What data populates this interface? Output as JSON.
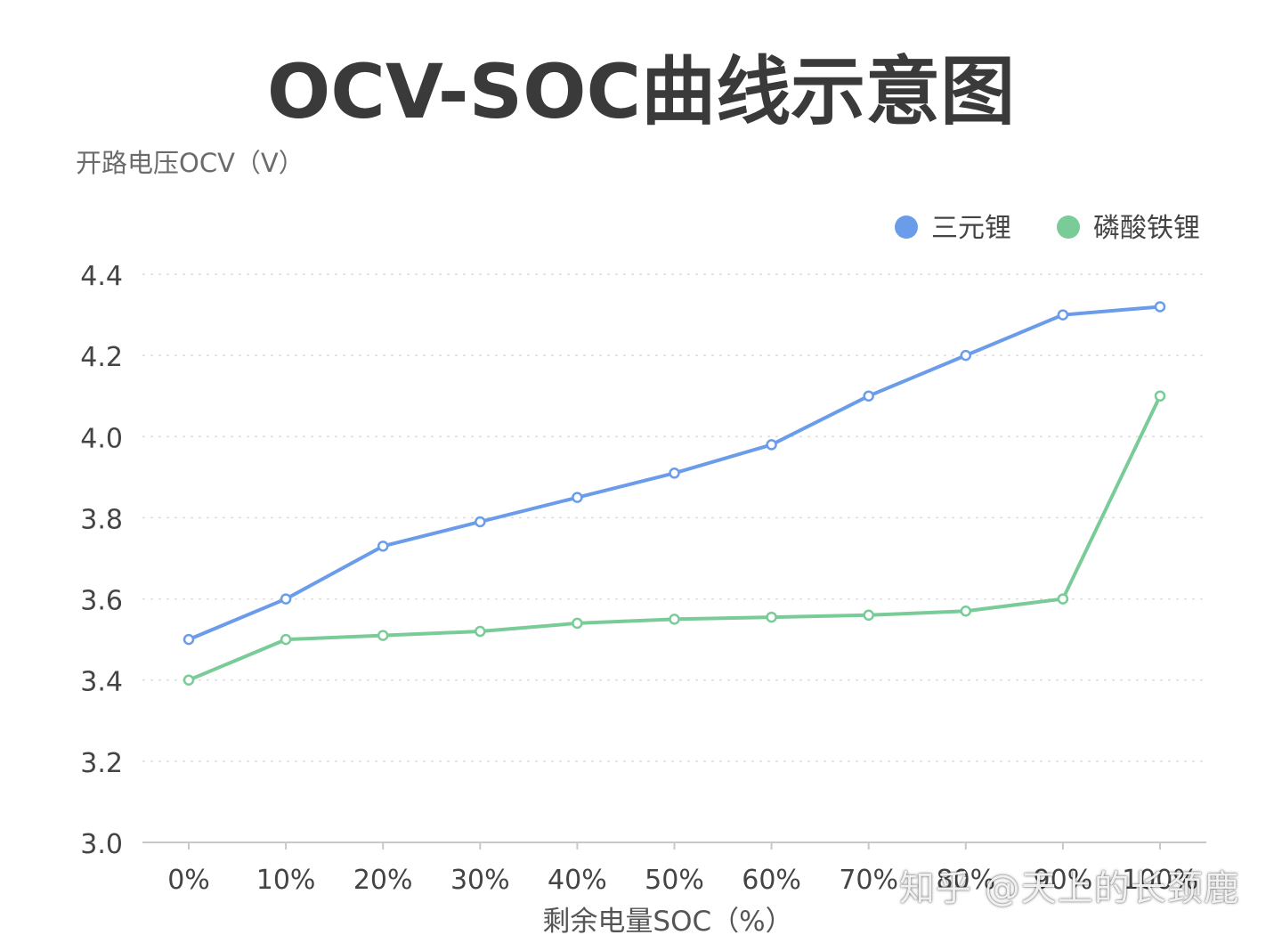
{
  "chart_data": {
    "type": "line",
    "title": "OCV-SOC曲线示意图",
    "ylabel": "开路电压OCV（V）",
    "xlabel": "剩余电量SOC（%）",
    "categories": [
      "0%",
      "10%",
      "20%",
      "30%",
      "40%",
      "50%",
      "60%",
      "70%",
      "80%",
      "90%",
      "100%"
    ],
    "ylim": [
      3.0,
      4.4
    ],
    "yticks": [
      "3.0",
      "3.2",
      "3.4",
      "3.6",
      "3.8",
      "4.0",
      "4.2",
      "4.4"
    ],
    "grid": true,
    "legend_position": "top-right",
    "series": [
      {
        "name": "三元锂",
        "color": "#6a9cea",
        "values": [
          3.5,
          3.6,
          3.73,
          3.79,
          3.85,
          3.91,
          3.98,
          4.1,
          4.2,
          4.3,
          4.32
        ]
      },
      {
        "name": "磷酸铁锂",
        "color": "#79cc98",
        "values": [
          3.4,
          3.5,
          3.51,
          3.52,
          3.54,
          3.55,
          3.555,
          3.56,
          3.57,
          3.6,
          4.1
        ]
      }
    ]
  },
  "watermark": "知乎 @天上的长颈鹿"
}
